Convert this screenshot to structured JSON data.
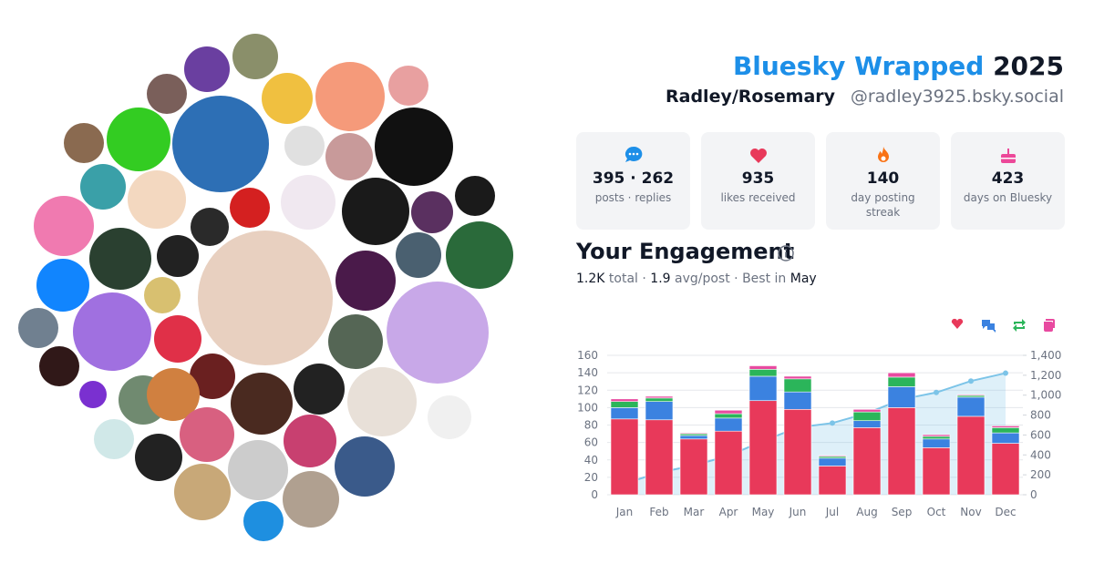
{
  "header": {
    "title": "Bluesky Wrapped",
    "year": "2025",
    "name": "Radley/Rosemary",
    "handle": "@radley3925.bsky.social"
  },
  "stats": [
    {
      "value": "395 · 262",
      "label": "posts · replies"
    },
    {
      "value": "935",
      "label": "likes received"
    },
    {
      "value": "140",
      "label": "day posting streak"
    },
    {
      "value": "423",
      "label": "days on Bluesky"
    }
  ],
  "engagement": {
    "title": "Your Engagement",
    "total": "1.2K",
    "total_label": "total",
    "separator": "·",
    "avg": "1.9",
    "avg_label": "avg/post",
    "best_label": "Best in",
    "best": "May"
  },
  "chart_data": {
    "type": "bar",
    "stacked": true,
    "categories": [
      "Jan",
      "Feb",
      "Mar",
      "Apr",
      "May",
      "Jun",
      "Jul",
      "Aug",
      "Sep",
      "Oct",
      "Nov",
      "Dec"
    ],
    "series": [
      {
        "color": "#e8395a",
        "values": [
          87,
          86,
          64,
          73,
          108,
          98,
          33,
          77,
          100,
          54,
          90,
          59
        ]
      },
      {
        "color": "#3b82e0",
        "values": [
          13,
          21,
          4,
          15,
          28,
          20,
          9,
          8,
          24,
          10,
          22,
          12
        ]
      },
      {
        "color": "#2bb55a",
        "values": [
          7,
          4,
          2,
          5,
          8,
          15,
          2,
          10,
          11,
          3,
          2,
          6
        ]
      },
      {
        "color": "#e84aa0",
        "values": [
          3,
          2,
          1,
          4,
          4,
          3,
          1,
          3,
          5,
          2,
          1,
          2
        ]
      },
      {
        "type": "line",
        "axis": "y2",
        "color": "#7cc4e8",
        "values": [
          110,
          223,
          294,
          391,
          539,
          675,
          720,
          818,
          958,
          1027,
          1142,
          1221
        ]
      }
    ],
    "ylim": [
      0,
      160
    ],
    "yticks": [
      0,
      20,
      40,
      60,
      80,
      100,
      120,
      140,
      160
    ],
    "y2lim": [
      0,
      1400
    ],
    "y2ticks": [
      0,
      200,
      400,
      600,
      800,
      {
        "value": 1000,
        "label": "1,000"
      },
      {
        "value": 1200,
        "label": "1,200"
      },
      {
        "value": 1400,
        "label": "1,400"
      }
    ],
    "grid": true
  }
}
